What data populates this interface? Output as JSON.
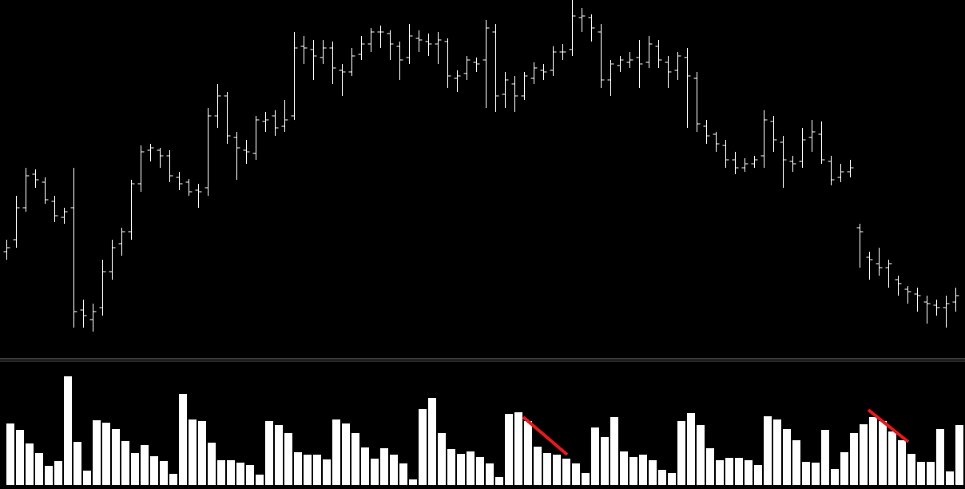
{
  "chart_data": [
    {
      "type": "ohlc",
      "ylim": [
        0,
        450
      ],
      "series": [
        {
          "color": "#ffffff",
          "values": [
            [
              135,
              150,
              125,
              140
            ],
            [
              150,
              205,
              140,
              190
            ],
            [
              190,
              240,
              185,
              230
            ],
            [
              232,
              238,
              215,
              225
            ],
            [
              222,
              228,
              195,
              200
            ],
            [
              198,
              205,
              172,
              180
            ],
            [
              178,
              190,
              170,
              185
            ],
            [
              190,
              240,
              28,
              60
            ],
            [
              62,
              75,
              40,
              55
            ],
            [
              50,
              70,
              35,
              60
            ],
            [
              65,
              125,
              55,
              110
            ],
            [
              110,
              150,
              100,
              140
            ],
            [
              145,
              165,
              130,
              160
            ],
            [
              160,
              225,
              150,
              220
            ],
            [
              220,
              268,
              210,
              260
            ],
            [
              262,
              270,
              248,
              265
            ],
            [
              262,
              265,
              240,
              255
            ],
            [
              255,
              262,
              222,
              230
            ],
            [
              228,
              235,
              212,
              220
            ],
            [
              222,
              226,
              205,
              210
            ],
            [
              212,
              220,
              190,
              210
            ],
            [
              215,
              315,
              205,
              305
            ],
            [
              305,
              345,
              290,
              330
            ],
            [
              330,
              335,
              270,
              280
            ],
            [
              278,
              285,
              225,
              265
            ],
            [
              262,
              275,
              245,
              260
            ],
            [
              258,
              305,
              250,
              300
            ],
            [
              298,
              310,
              285,
              300
            ],
            [
              305,
              312,
              280,
              290
            ],
            [
              292,
              325,
              285,
              300
            ],
            [
              305,
              410,
              300,
              390
            ],
            [
              392,
              405,
              370,
              390
            ],
            [
              388,
              400,
              350,
              380
            ],
            [
              378,
              400,
              370,
              390
            ],
            [
              390,
              398,
              345,
              365
            ],
            [
              362,
              370,
              330,
              360
            ],
            [
              360,
              390,
              355,
              380
            ],
            [
              382,
              405,
              375,
              395
            ],
            [
              395,
              415,
              385,
              410
            ],
            [
              410,
              418,
              390,
              410
            ],
            [
              408,
              412,
              375,
              395
            ],
            [
              392,
              398,
              350,
              375
            ],
            [
              378,
              420,
              370,
              405
            ],
            [
              402,
              412,
              385,
              400
            ],
            [
              398,
              408,
              380,
              395
            ],
            [
              395,
              410,
              370,
              400
            ],
            [
              398,
              402,
              340,
              355
            ],
            [
              352,
              362,
              335,
              355
            ],
            [
              358,
              380,
              350,
              375
            ],
            [
              372,
              378,
              360,
              370
            ],
            [
              375,
              425,
              315,
              415
            ],
            [
              410,
              420,
              310,
              330
            ],
            [
              332,
              360,
              315,
              350
            ],
            [
              345,
              355,
              310,
              330
            ],
            [
              330,
              360,
              325,
              355
            ],
            [
              352,
              372,
              345,
              365
            ],
            [
              362,
              370,
              350,
              360
            ],
            [
              362,
              392,
              355,
              385
            ],
            [
              385,
              395,
              375,
              385
            ],
            [
              388,
              450,
              380,
              430
            ],
            [
              428,
              440,
              410,
              430
            ],
            [
              428,
              432,
              398,
              415
            ],
            [
              410,
              420,
              340,
              350
            ],
            [
              350,
              375,
              330,
              370
            ],
            [
              368,
              380,
              360,
              375
            ],
            [
              372,
              385,
              365,
              375
            ],
            [
              378,
              400,
              340,
              370
            ],
            [
              372,
              405,
              365,
              395
            ],
            [
              392,
              400,
              365,
              375
            ],
            [
              372,
              380,
              340,
              360
            ],
            [
              362,
              385,
              350,
              380
            ],
            [
              378,
              390,
              290,
              355
            ],
            [
              352,
              360,
              285,
              295
            ],
            [
              292,
              300,
              270,
              280
            ],
            [
              282,
              285,
              260,
              270
            ],
            [
              268,
              275,
              240,
              250
            ],
            [
              250,
              260,
              232,
              240
            ],
            [
              240,
              252,
              235,
              245
            ],
            [
              245,
              255,
              240,
              250
            ],
            [
              255,
              312,
              240,
              300
            ],
            [
              298,
              305,
              260,
              275
            ],
            [
              272,
              280,
              215,
              250
            ],
            [
              248,
              255,
              235,
              245
            ],
            [
              248,
              290,
              240,
              275
            ],
            [
              278,
              300,
              260,
              285
            ],
            [
              282,
              298,
              245,
              250
            ],
            [
              248,
              255,
              218,
              225
            ],
            [
              228,
              245,
              222,
              235
            ],
            [
              235,
              250,
              228,
              240
            ],
            [
              165,
              170,
              115,
              160
            ],
            [
              128,
              135,
              100,
              125
            ],
            [
              120,
              140,
              105,
              115
            ],
            [
              115,
              125,
              90,
              120
            ],
            [
              100,
              105,
              80,
              95
            ],
            [
              88,
              92,
              70,
              85
            ],
            [
              82,
              90,
              60,
              80
            ],
            [
              72,
              80,
              45,
              70
            ],
            [
              68,
              75,
              55,
              65
            ],
            [
              65,
              80,
              40,
              70
            ],
            [
              72,
              90,
              60,
              80
            ]
          ]
        }
      ]
    },
    {
      "type": "bar",
      "ylim": [
        0,
        155
      ],
      "color": "#ffffff",
      "values": [
        77,
        69,
        52,
        40,
        24,
        30,
        136,
        54,
        18,
        81,
        78,
        70,
        55,
        40,
        50,
        36,
        30,
        14,
        114,
        82,
        80,
        53,
        31,
        31,
        28,
        25,
        13,
        80,
        75,
        65,
        41,
        38,
        38,
        32,
        82,
        77,
        65,
        47,
        33,
        46,
        38,
        27,
        7,
        95,
        109,
        65,
        45,
        39,
        42,
        35,
        27,
        10,
        89,
        91,
        80,
        48,
        40,
        38,
        33,
        27,
        15,
        72,
        60,
        85,
        42,
        35,
        38,
        31,
        19,
        15,
        80,
        90,
        75,
        46,
        31,
        34,
        34,
        31,
        25,
        86,
        82,
        70,
        56,
        29,
        28,
        69,
        20,
        41,
        65,
        76,
        85,
        80,
        67,
        56,
        39,
        29,
        29,
        70,
        17,
        75
      ]
    }
  ]
}
